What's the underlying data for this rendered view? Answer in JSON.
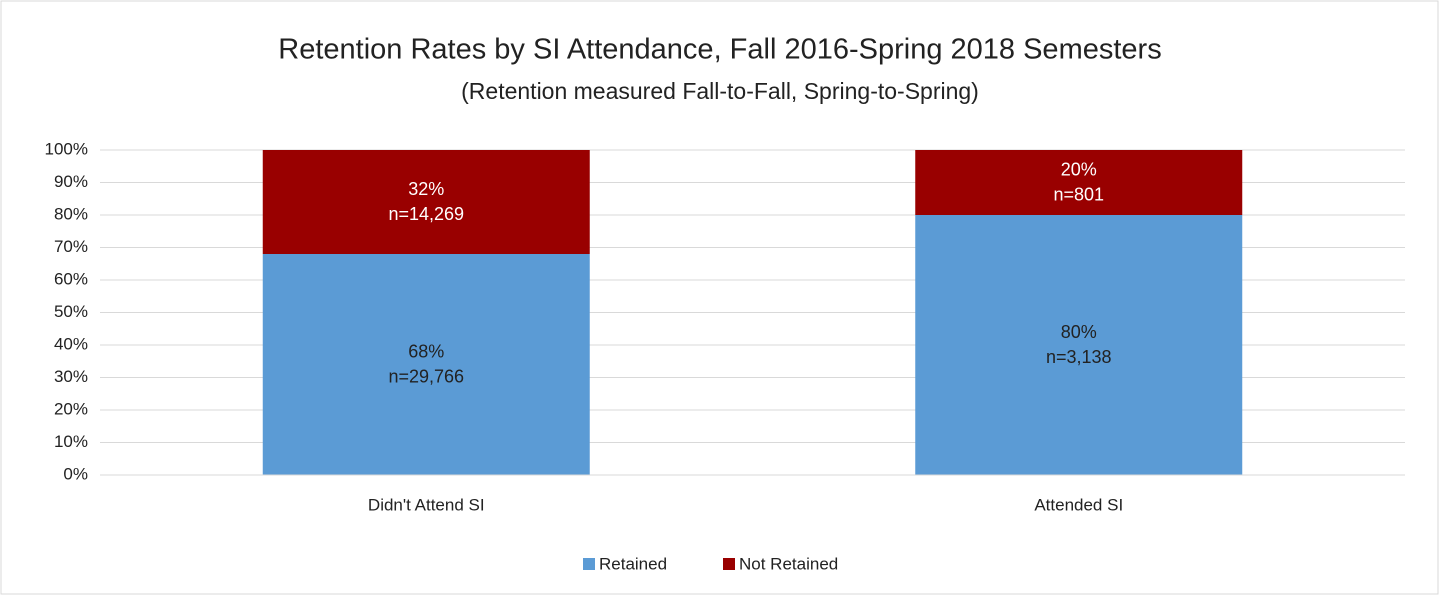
{
  "chart_data": {
    "type": "stacked_bar",
    "title": "Retention Rates by SI Attendance, Fall 2016-Spring 2018 Semesters",
    "subtitle": "(Retention measured Fall-to-Fall, Spring-to-Spring)",
    "categories": [
      "Didn't Attend SI",
      "Attended SI"
    ],
    "series": [
      {
        "name": "Retained",
        "color": "#5b9bd5",
        "values": [
          68,
          80
        ],
        "value_labels": [
          "68%",
          "80%"
        ],
        "n_labels": [
          "n=29,766",
          "n=3,138"
        ]
      },
      {
        "name": "Not Retained",
        "color": "#990000",
        "values": [
          32,
          20
        ],
        "value_labels": [
          "32%",
          "20%"
        ],
        "n_labels": [
          "n=14,269",
          "n=801"
        ]
      }
    ],
    "ylim": [
      0,
      100
    ],
    "yticks": [
      {
        "value": 0,
        "label": "0%"
      },
      {
        "value": 10,
        "label": "10%"
      },
      {
        "value": 20,
        "label": "20%"
      },
      {
        "value": 30,
        "label": "30%"
      },
      {
        "value": 40,
        "label": "40%"
      },
      {
        "value": 50,
        "label": "50%"
      },
      {
        "value": 60,
        "label": "60%"
      },
      {
        "value": 70,
        "label": "70%"
      },
      {
        "value": 80,
        "label": "80%"
      },
      {
        "value": 90,
        "label": "90%"
      },
      {
        "value": 100,
        "label": "100%"
      }
    ],
    "grid": true,
    "legend": "bottom"
  }
}
